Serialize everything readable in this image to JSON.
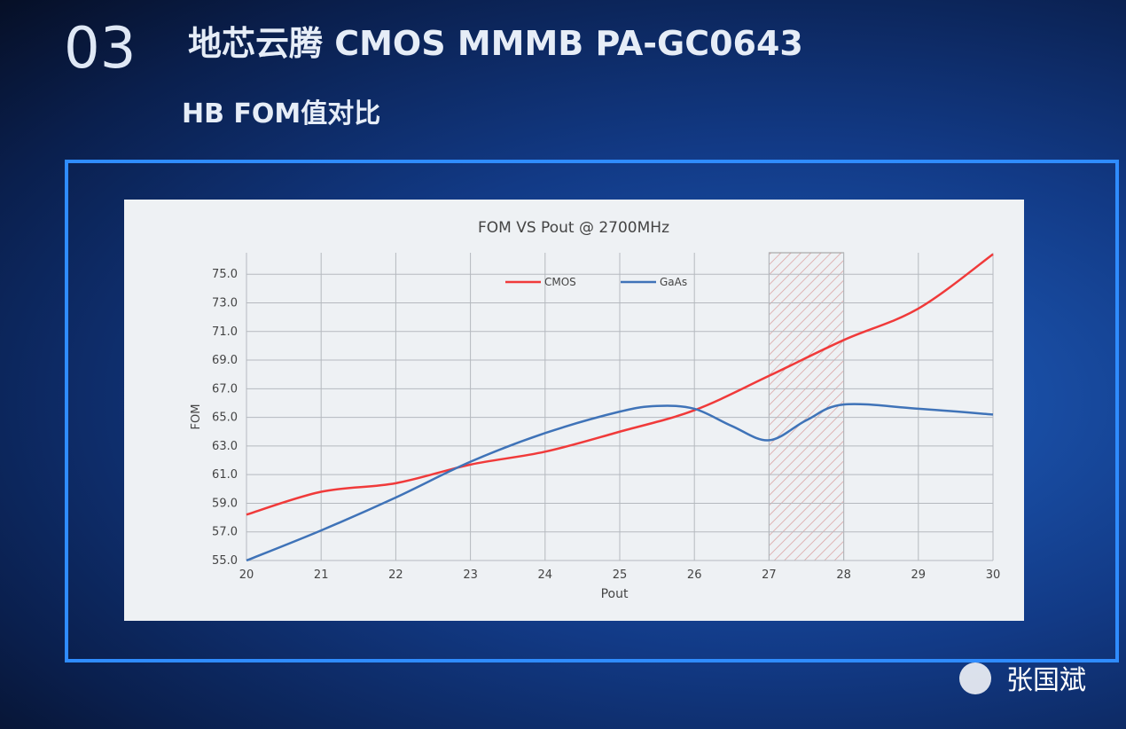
{
  "header": {
    "number": "03",
    "title": "地芯云腾 CMOS MMMB PA-GC0643",
    "subtitle": "HB FOM值对比"
  },
  "watermark": "张国斌",
  "chart_data": {
    "type": "line",
    "title": "FOM VS Pout @ 2700MHz",
    "x_label": "Pout",
    "y_label": "FOM",
    "xlim": [
      20,
      30
    ],
    "xticks": [
      20,
      21,
      22,
      23,
      24,
      25,
      26,
      27,
      28,
      29,
      30
    ],
    "ylim": [
      55,
      76.5
    ],
    "yticks": [
      {
        "value": 55,
        "label": "55.0"
      },
      {
        "value": 57,
        "label": "57.0"
      },
      {
        "value": 59,
        "label": "59.0"
      },
      {
        "value": 61,
        "label": "61.0"
      },
      {
        "value": 63,
        "label": "63.0"
      },
      {
        "value": 65,
        "label": "65.0"
      },
      {
        "value": 67,
        "label": "67.0"
      },
      {
        "value": 69,
        "label": "69.0"
      },
      {
        "value": 71,
        "label": "71.0"
      },
      {
        "value": 73,
        "label": "73.0"
      },
      {
        "value": 75,
        "label": "75.0"
      }
    ],
    "grid": true,
    "shaded_band": [
      27,
      28
    ],
    "legend": "top",
    "series": [
      {
        "name": "CMOS",
        "color": "#f03a3a",
        "x": [
          20,
          21,
          22,
          23,
          24,
          25,
          26,
          27,
          28,
          29,
          30
        ],
        "values": [
          58.2,
          59.8,
          60.4,
          61.7,
          62.6,
          64.0,
          65.5,
          67.9,
          70.4,
          72.6,
          76.4
        ]
      },
      {
        "name": "GaAs",
        "color": "#3f73b8",
        "x": [
          20,
          21,
          22,
          23,
          24,
          25,
          25.5,
          26,
          26.5,
          27,
          27.5,
          28,
          29,
          30
        ],
        "values": [
          55.0,
          57.1,
          59.4,
          61.9,
          63.9,
          65.4,
          65.8,
          65.6,
          64.4,
          63.4,
          64.8,
          65.9,
          65.6,
          65.2
        ]
      }
    ]
  }
}
